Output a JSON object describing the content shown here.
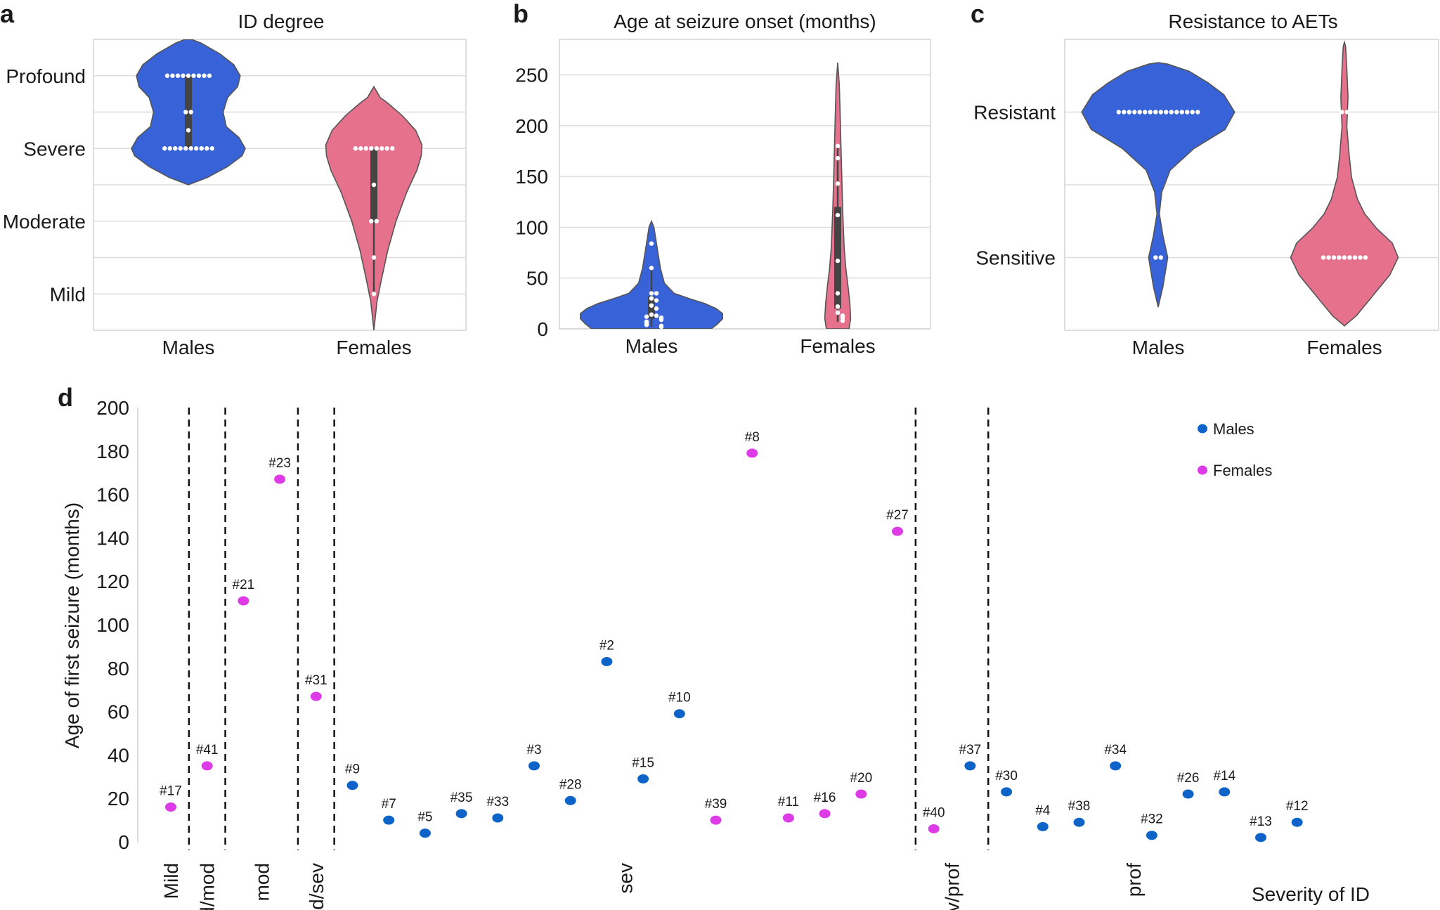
{
  "colors": {
    "male_violin": "#3862d8",
    "female_violin": "#e5718d",
    "male_dot": "#0e63c9",
    "female_dot": "#dd3ae8",
    "box": "#444444",
    "swarm": "#ffffff"
  },
  "chart_data": [
    {
      "panel": "a",
      "type": "violin",
      "title": "ID degree",
      "categories": [
        "Males",
        "Females"
      ],
      "y_ticks": [
        {
          "value": 4,
          "label": "Profound"
        },
        {
          "value": 3,
          "label": "Severe"
        },
        {
          "value": 2,
          "label": "Moderate"
        },
        {
          "value": 1,
          "label": "Mild"
        }
      ],
      "ylim": [
        0.5,
        4.5
      ],
      "gridlines": [
        1,
        1.5,
        2,
        2.5,
        3,
        3.5,
        4
      ],
      "violins": [
        {
          "category": "Males",
          "color_key": "male_violin",
          "profile": [
            [
              2.5,
              0
            ],
            [
              2.6,
              0.3
            ],
            [
              2.75,
              0.62
            ],
            [
              2.9,
              0.85
            ],
            [
              3.0,
              0.9
            ],
            [
              3.15,
              0.8
            ],
            [
              3.3,
              0.6
            ],
            [
              3.5,
              0.55
            ],
            [
              3.7,
              0.62
            ],
            [
              3.85,
              0.78
            ],
            [
              4.0,
              0.82
            ],
            [
              4.15,
              0.72
            ],
            [
              4.3,
              0.5
            ],
            [
              4.45,
              0.2
            ],
            [
              4.5,
              0.05
            ]
          ],
          "box": {
            "q1": 3,
            "median": 3.5,
            "q3": 4,
            "wlow": 3,
            "whigh": 4
          },
          "points": [
            {
              "value": 4,
              "count": 9
            },
            {
              "value": 3.5,
              "count": 2
            },
            {
              "value": 3.25,
              "count": 1
            },
            {
              "value": 3,
              "count": 10
            }
          ]
        },
        {
          "category": "Females",
          "color_key": "female_violin",
          "profile": [
            [
              0.5,
              0
            ],
            [
              0.9,
              0.05
            ],
            [
              1.2,
              0.12
            ],
            [
              1.6,
              0.22
            ],
            [
              2.0,
              0.35
            ],
            [
              2.4,
              0.52
            ],
            [
              2.7,
              0.68
            ],
            [
              2.9,
              0.75
            ],
            [
              3.05,
              0.76
            ],
            [
              3.25,
              0.66
            ],
            [
              3.45,
              0.45
            ],
            [
              3.6,
              0.25
            ],
            [
              3.65,
              0.18
            ],
            [
              3.7,
              0.1
            ],
            [
              3.85,
              0
            ]
          ],
          "box": {
            "q1": 2,
            "median": 2.5,
            "q3": 3,
            "wlow": 1,
            "whigh": 3
          },
          "points": [
            {
              "value": 3,
              "count": 8
            },
            {
              "value": 2.5,
              "count": 1
            },
            {
              "value": 2,
              "count": 2
            },
            {
              "value": 1.5,
              "count": 1
            },
            {
              "value": 1,
              "count": 1
            }
          ]
        }
      ]
    },
    {
      "panel": "b",
      "type": "violin",
      "title": "Age at seizure onset (months)",
      "categories": [
        "Males",
        "Females"
      ],
      "y_ticks": [
        {
          "value": 0,
          "label": "0"
        },
        {
          "value": 50,
          "label": "50"
        },
        {
          "value": 100,
          "label": "100"
        },
        {
          "value": 150,
          "label": "150"
        },
        {
          "value": 200,
          "label": "200"
        },
        {
          "value": 250,
          "label": "250"
        }
      ],
      "ylim": [
        0,
        285
      ],
      "gridlines": [
        0,
        50,
        100,
        150,
        200,
        250
      ],
      "violins": [
        {
          "category": "Males",
          "color_key": "male_violin",
          "profile": [
            [
              0,
              0.74
            ],
            [
              5,
              0.82
            ],
            [
              10,
              0.88
            ],
            [
              15,
              0.88
            ],
            [
              20,
              0.8
            ],
            [
              25,
              0.66
            ],
            [
              30,
              0.46
            ],
            [
              35,
              0.28
            ],
            [
              45,
              0.16
            ],
            [
              60,
              0.11
            ],
            [
              75,
              0.08
            ],
            [
              90,
              0.05
            ],
            [
              100,
              0.03
            ],
            [
              106,
              0
            ]
          ],
          "box": {
            "q1": 10,
            "median": 20,
            "q3": 32,
            "wlow": 2,
            "whigh": 60
          },
          "points": [
            84,
            60,
            35,
            35,
            30,
            28,
            23,
            20,
            14,
            13,
            12,
            11,
            9,
            7,
            5,
            4,
            3,
            2
          ]
        },
        {
          "category": "Females",
          "color_key": "female_violin",
          "profile": [
            [
              0,
              0.14
            ],
            [
              10,
              0.16
            ],
            [
              25,
              0.15
            ],
            [
              40,
              0.13
            ],
            [
              60,
              0.1
            ],
            [
              80,
              0.08
            ],
            [
              100,
              0.07
            ],
            [
              120,
              0.06
            ],
            [
              150,
              0.05
            ],
            [
              180,
              0.04
            ],
            [
              210,
              0.03
            ],
            [
              240,
              0.02
            ],
            [
              262,
              0
            ]
          ],
          "box": {
            "q1": 20,
            "median": 68,
            "q3": 120,
            "wlow": 7,
            "whigh": 180
          },
          "points": [
            180,
            168,
            143,
            112,
            67,
            35,
            22,
            16,
            13,
            11,
            8
          ]
        }
      ]
    },
    {
      "panel": "c",
      "type": "violin",
      "title": "Resistance to AETs",
      "categories": [
        "Males",
        "Females"
      ],
      "y_ticks": [
        {
          "value": 1,
          "label": "Resistant"
        },
        {
          "value": 0,
          "label": "Sensitive"
        }
      ],
      "ylim": [
        -0.5,
        1.5
      ],
      "gridlines": [
        0,
        0.5,
        1
      ],
      "violins": [
        {
          "category": "Males",
          "color_key": "male_violin",
          "profile": [
            [
              -0.34,
              0
            ],
            [
              -0.2,
              0.04
            ],
            [
              0,
              0.08
            ],
            [
              0.15,
              0.04
            ],
            [
              0.3,
              0.01
            ],
            [
              0.45,
              0.03
            ],
            [
              0.6,
              0.1
            ],
            [
              0.75,
              0.3
            ],
            [
              0.88,
              0.56
            ],
            [
              1.0,
              0.64
            ],
            [
              1.12,
              0.55
            ],
            [
              1.2,
              0.42
            ],
            [
              1.28,
              0.26
            ],
            [
              1.33,
              0.08
            ],
            [
              1.34,
              0
            ]
          ],
          "box": null,
          "points": [
            {
              "value": 1,
              "count": 16
            },
            {
              "value": 0,
              "count": 2
            }
          ]
        },
        {
          "category": "Females",
          "color_key": "female_violin",
          "profile": [
            [
              -0.47,
              0
            ],
            [
              -0.4,
              0.1
            ],
            [
              -0.28,
              0.22
            ],
            [
              -0.12,
              0.38
            ],
            [
              0.0,
              0.45
            ],
            [
              0.1,
              0.4
            ],
            [
              0.2,
              0.27
            ],
            [
              0.3,
              0.17
            ],
            [
              0.4,
              0.11
            ],
            [
              0.55,
              0.06
            ],
            [
              0.7,
              0.04
            ],
            [
              0.9,
              0.02
            ],
            [
              1.1,
              0.03
            ],
            [
              1.3,
              0.02
            ],
            [
              1.45,
              0.01
            ],
            [
              1.48,
              0
            ]
          ],
          "box": null,
          "points": [
            {
              "value": 1,
              "count": 2
            },
            {
              "value": 0,
              "count": 9
            }
          ]
        }
      ]
    },
    {
      "panel": "d",
      "type": "scatter",
      "ylabel": "Age of first seizure (months)",
      "xlabel": "Severity of ID",
      "ylim": [
        0,
        200
      ],
      "y_ticks": [
        0,
        20,
        40,
        60,
        80,
        100,
        120,
        140,
        160,
        180,
        200
      ],
      "legend": {
        "position": "top-right",
        "entries": [
          {
            "name": "Males",
            "color_key": "male_dot"
          },
          {
            "name": "Females",
            "color_key": "female_dot"
          }
        ]
      },
      "groups": [
        {
          "label": "Mild",
          "start": 0,
          "end": 1
        },
        {
          "label": "Mild/mod",
          "start": 1,
          "end": 2
        },
        {
          "label": "mod",
          "start": 2,
          "end": 4
        },
        {
          "label": "mod/sev",
          "start": 4,
          "end": 5
        },
        {
          "label": "sev",
          "start": 5,
          "end": 21
        },
        {
          "label": "sev/prof",
          "start": 21,
          "end": 23
        },
        {
          "label": "prof",
          "start": 23,
          "end": 31
        }
      ],
      "dividers": [
        1,
        2,
        4,
        5,
        21,
        23
      ],
      "points": [
        {
          "id": "#17",
          "sex": "Female",
          "value": 16
        },
        {
          "id": "#41",
          "sex": "Female",
          "value": 35
        },
        {
          "id": "#21",
          "sex": "Female",
          "value": 111
        },
        {
          "id": "#23",
          "sex": "Female",
          "value": 167
        },
        {
          "id": "#31",
          "sex": "Female",
          "value": 67
        },
        {
          "id": "#9",
          "sex": "Male",
          "value": 26
        },
        {
          "id": "#7",
          "sex": "Male",
          "value": 10
        },
        {
          "id": "#5",
          "sex": "Male",
          "value": 4
        },
        {
          "id": "#35",
          "sex": "Male",
          "value": 13
        },
        {
          "id": "#33",
          "sex": "Male",
          "value": 11
        },
        {
          "id": "#3",
          "sex": "Male",
          "value": 35
        },
        {
          "id": "#28",
          "sex": "Male",
          "value": 19
        },
        {
          "id": "#2",
          "sex": "Male",
          "value": 83
        },
        {
          "id": "#15",
          "sex": "Male",
          "value": 29
        },
        {
          "id": "#10",
          "sex": "Male",
          "value": 59
        },
        {
          "id": "#39",
          "sex": "Female",
          "value": 10
        },
        {
          "id": "#8",
          "sex": "Female",
          "value": 179
        },
        {
          "id": "#11",
          "sex": "Female",
          "value": 11
        },
        {
          "id": "#16",
          "sex": "Female",
          "value": 13
        },
        {
          "id": "#20",
          "sex": "Female",
          "value": 22
        },
        {
          "id": "#27",
          "sex": "Female",
          "value": 143
        },
        {
          "id": "#40",
          "sex": "Female",
          "value": 6
        },
        {
          "id": "#37",
          "sex": "Male",
          "value": 35
        },
        {
          "id": "#30",
          "sex": "Male",
          "value": 23
        },
        {
          "id": "#4",
          "sex": "Male",
          "value": 7
        },
        {
          "id": "#38",
          "sex": "Male",
          "value": 9
        },
        {
          "id": "#34",
          "sex": "Male",
          "value": 35
        },
        {
          "id": "#32",
          "sex": "Male",
          "value": 3
        },
        {
          "id": "#26",
          "sex": "Male",
          "value": 22
        },
        {
          "id": "#14",
          "sex": "Male",
          "value": 23
        },
        {
          "id": "#13",
          "sex": "Male",
          "value": 2
        },
        {
          "id": "#12",
          "sex": "Male",
          "value": 9
        }
      ]
    }
  ]
}
